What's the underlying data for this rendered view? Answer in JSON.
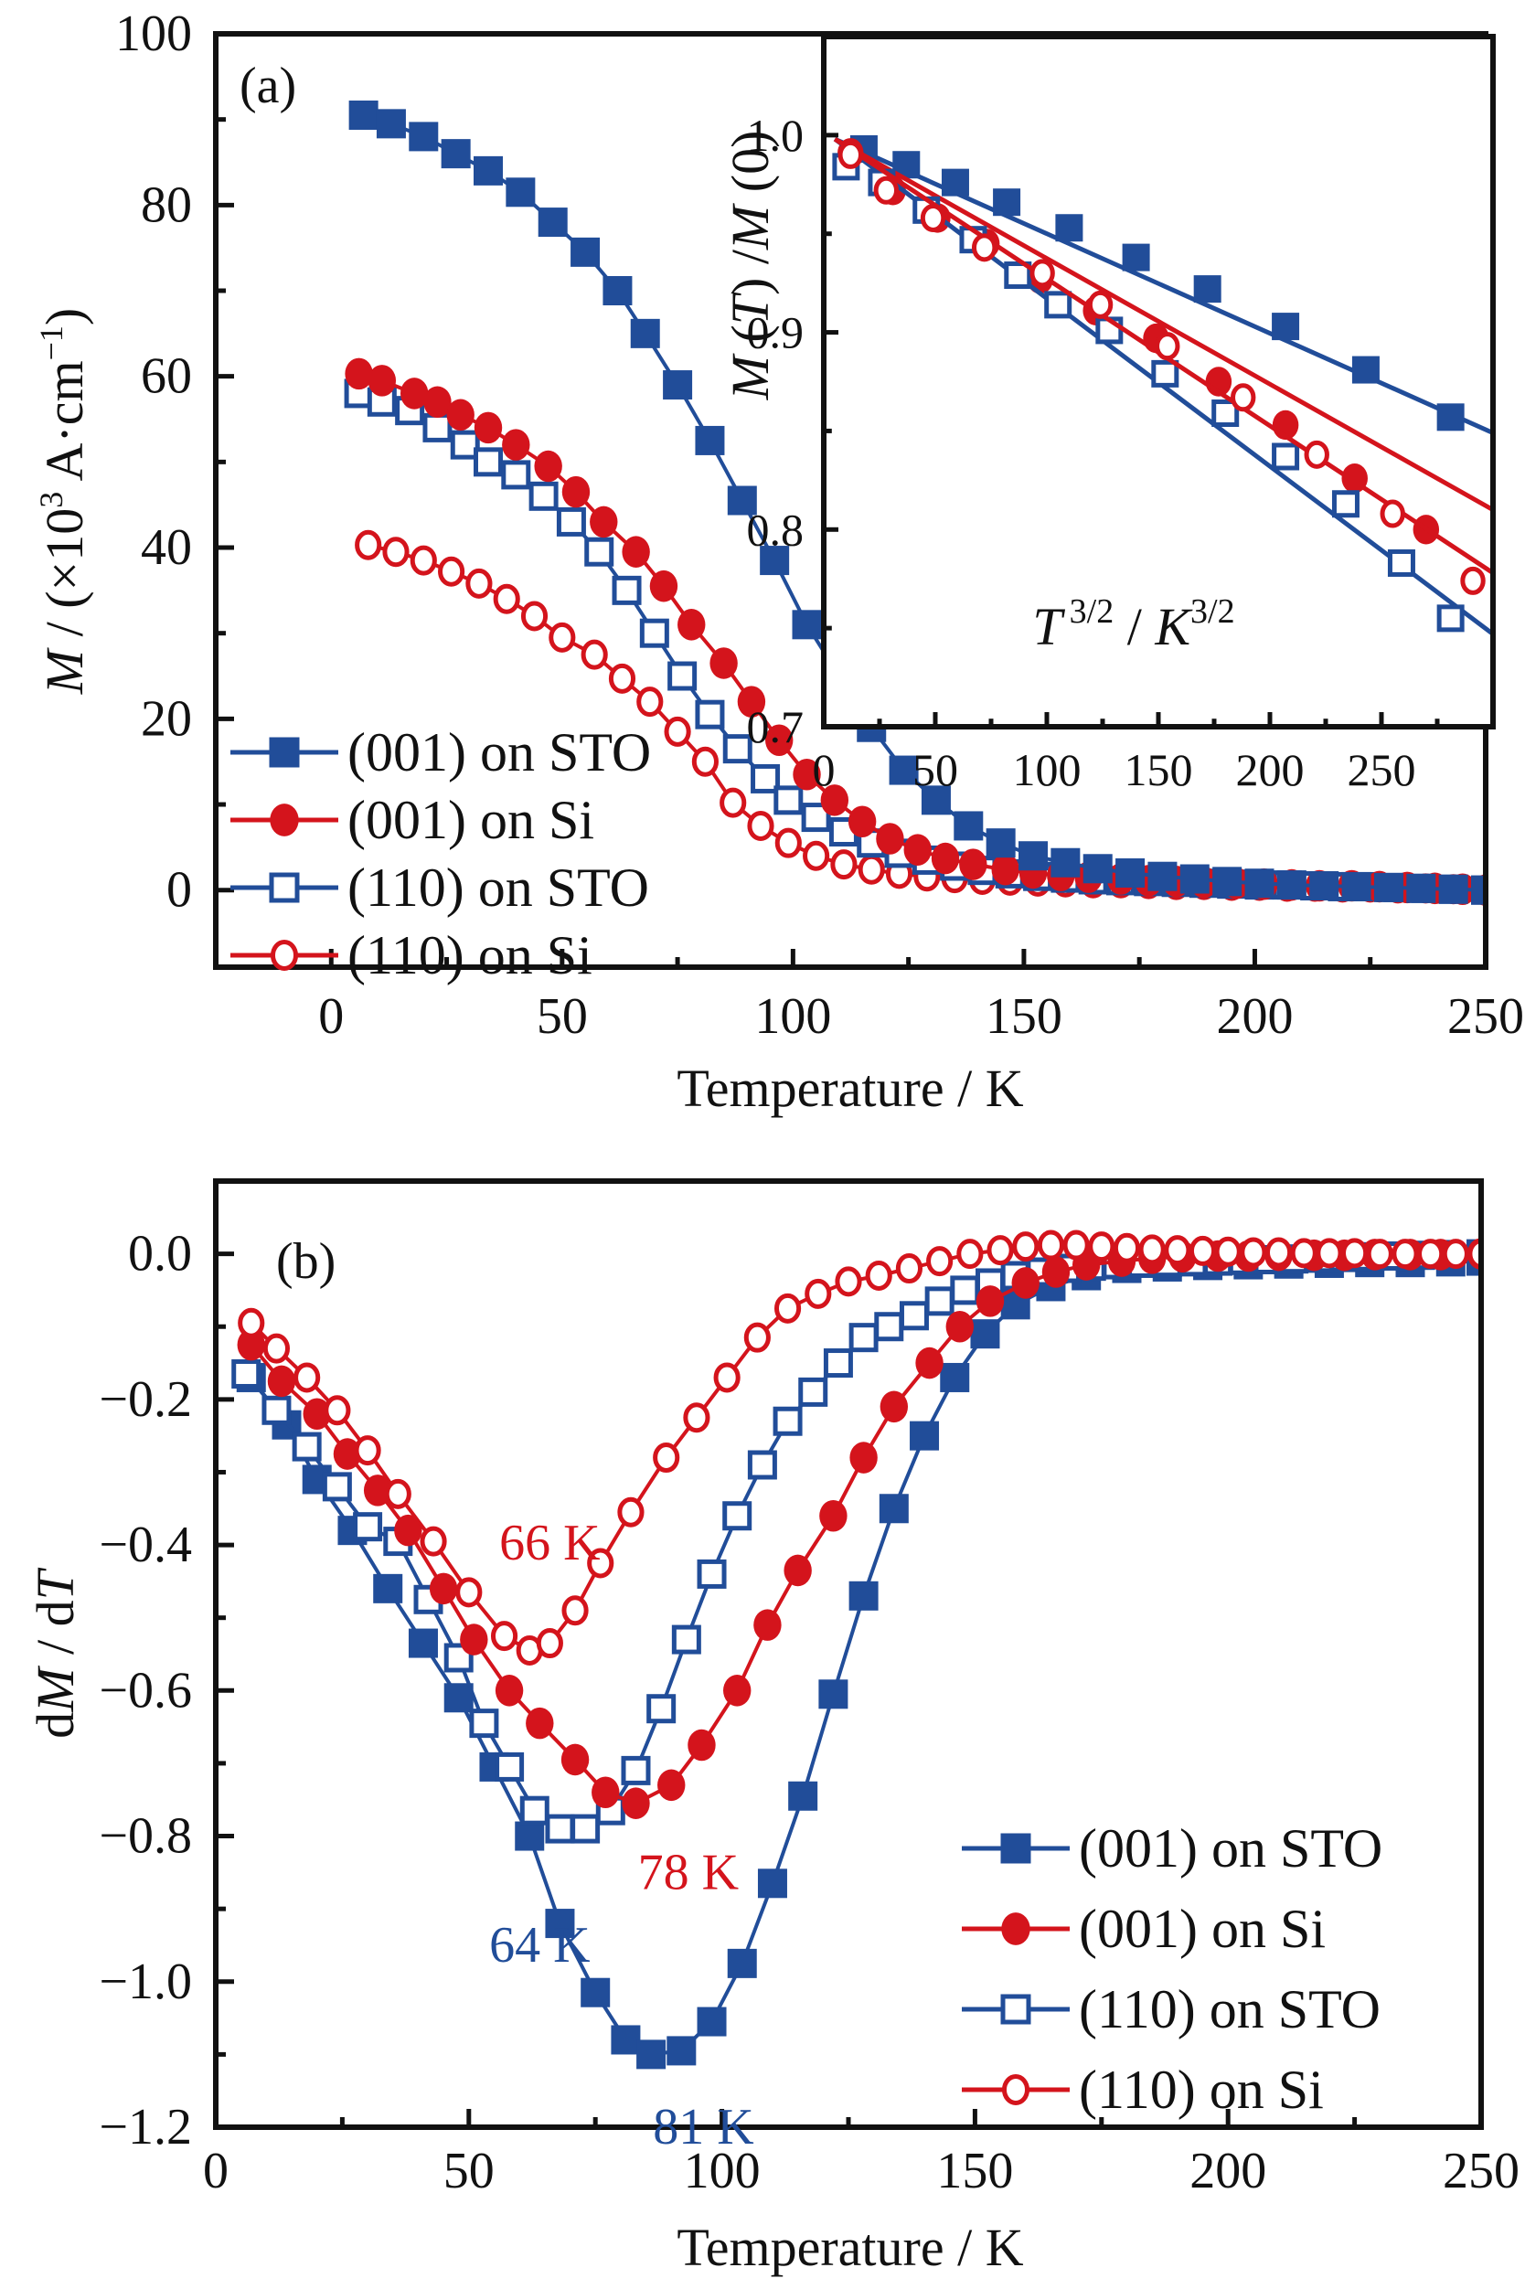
{
  "colors": {
    "blue": "#214d99",
    "red": "#d4141c",
    "axis": "#111111"
  },
  "chart_data": [
    {
      "id": "a",
      "type": "scatter",
      "panel_label": "(a)",
      "title": "",
      "xlabel": "Temperature / K",
      "ylabel": "M / (×10³ A·cm⁻¹)",
      "ylabel_parts": {
        "italic": "M",
        "rest": " / (×10",
        "sup": "3",
        "rest2": " A·cm",
        "sup2": "−1",
        "close": ")"
      },
      "xlim": [
        -25,
        250
      ],
      "ylim": [
        -9,
        100
      ],
      "xticks": [
        0,
        50,
        100,
        150,
        200,
        250
      ],
      "yticks": [
        0,
        20,
        40,
        60,
        80,
        100
      ],
      "legend_position": "bottom-left",
      "series": [
        {
          "name": "(001) on STO",
          "color": "blue",
          "marker": "square-filled",
          "x": [
            7,
            13,
            20,
            27,
            34,
            41,
            48,
            55,
            62,
            68,
            75,
            82,
            89,
            96,
            103,
            110,
            117,
            124,
            131,
            138,
            145,
            152,
            159,
            166,
            173,
            180,
            187,
            194,
            201,
            208,
            215,
            222,
            229,
            236,
            243,
            250
          ],
          "y": [
            90.5,
            89.5,
            88,
            86,
            84,
            81.5,
            78,
            74.5,
            70,
            65,
            59,
            52.5,
            45.5,
            38.5,
            31,
            25,
            19,
            14,
            10.5,
            7.5,
            5.5,
            4,
            3.2,
            2.5,
            2,
            1.6,
            1.3,
            1,
            0.8,
            0.6,
            0.5,
            0.4,
            0.3,
            0.2,
            0.1,
            0
          ]
        },
        {
          "name": "(001) on Si",
          "color": "red",
          "marker": "circle-filled",
          "x": [
            6,
            11,
            18,
            23,
            28,
            34,
            40,
            47,
            53,
            59,
            66,
            72,
            78,
            85,
            91,
            97,
            103,
            109,
            115,
            121,
            127,
            133,
            139,
            146,
            152,
            158,
            164,
            171,
            177,
            183,
            189,
            196,
            202,
            208,
            214,
            221,
            227,
            233,
            239,
            245,
            250
          ],
          "y": [
            60.3,
            59.5,
            58,
            57,
            55.5,
            54,
            52,
            49.5,
            46.5,
            43,
            39.5,
            35.5,
            31,
            26.5,
            22,
            17.5,
            13.5,
            10.5,
            8,
            6,
            4.7,
            3.7,
            3,
            2.4,
            2,
            1.7,
            1.5,
            1.3,
            1.1,
            1,
            0.9,
            0.8,
            0.7,
            0.6,
            0.5,
            0.5,
            0.4,
            0.3,
            0.2,
            0.1,
            0
          ]
        },
        {
          "name": "(110) on STO",
          "color": "blue",
          "marker": "square-open",
          "x": [
            6,
            11,
            17,
            23,
            29,
            34,
            40,
            46,
            52,
            58,
            64,
            70,
            76,
            82,
            88,
            94,
            99,
            105,
            111,
            117,
            123,
            129,
            135,
            141,
            147,
            153,
            159,
            165,
            171,
            177,
            183,
            189,
            195,
            201,
            207,
            213,
            219,
            225,
            231,
            237,
            243,
            250
          ],
          "y": [
            58,
            57,
            56,
            54,
            52,
            50,
            48.5,
            46,
            43,
            39.5,
            35,
            30,
            25,
            20.5,
            16.5,
            13,
            10.5,
            8.5,
            6.8,
            5.5,
            4.3,
            3.5,
            2.8,
            2.3,
            1.9,
            1.6,
            1.4,
            1.2,
            1.1,
            1,
            0.9,
            0.8,
            0.7,
            0.6,
            0.6,
            0.5,
            0.4,
            0.4,
            0.3,
            0.2,
            0.1,
            0
          ]
        },
        {
          "name": "(110) on Si",
          "color": "red",
          "marker": "circle-open",
          "x": [
            8,
            14,
            20,
            26,
            32,
            38,
            44,
            50,
            57,
            63,
            69,
            75,
            81,
            87,
            93,
            99,
            105,
            111,
            117,
            123,
            129,
            135,
            141,
            147,
            153,
            159,
            165,
            171,
            177,
            183,
            189,
            195,
            201,
            207,
            213,
            219,
            225,
            231,
            237,
            243,
            250
          ],
          "y": [
            40.3,
            39.5,
            38.5,
            37.2,
            35.8,
            34,
            32,
            29.5,
            27.5,
            24.7,
            22,
            18.5,
            15,
            10.2,
            7.5,
            5.5,
            4,
            3,
            2.4,
            1.9,
            1.6,
            1.4,
            1.2,
            1.1,
            1,
            0.9,
            0.8,
            0.8,
            0.7,
            0.6,
            0.6,
            0.5,
            0.5,
            0.4,
            0.4,
            0.3,
            0.3,
            0.2,
            0.2,
            0.1,
            0
          ]
        }
      ]
    },
    {
      "id": "a-inset",
      "type": "scatter",
      "xlabel": "T 3/2 / K3/2",
      "xlabel_parts": {
        "t": "T",
        "tsup": "3/2",
        "sep": " / ",
        "k": "K",
        "ksup": "3/2"
      },
      "ylabel": "M (T) /M (0)",
      "ylabel_parts": {
        "m1": "M",
        "t": "T",
        "m2": "M",
        "zero": "0"
      },
      "xlim": [
        0,
        300
      ],
      "ylim": [
        0.7,
        1.05
      ],
      "xticks": [
        0,
        50,
        100,
        150,
        200,
        250
      ],
      "yticks": [
        0.7,
        0.8,
        0.9,
        1.0
      ],
      "ytick_labels": [
        "0.7",
        "0.8",
        "0.9",
        "1.0"
      ],
      "series": [
        {
          "name": "(001) on STO",
          "color": "blue",
          "marker": "square-filled",
          "x": [
            18,
            37,
            59,
            82,
            110,
            140,
            172,
            207,
            243,
            281
          ],
          "y": [
            0.993,
            0.985,
            0.976,
            0.966,
            0.953,
            0.938,
            0.922,
            0.903,
            0.881,
            0.857
          ],
          "fit": {
            "x": [
              5,
              300
            ],
            "y": [
              0.998,
              0.849
            ]
          }
        },
        {
          "name": "(001) on Si",
          "color": "red",
          "marker": "circle-filled",
          "x": [
            12,
            31,
            51,
            73,
            97,
            122,
            149,
            177,
            207,
            238,
            270
          ],
          "y": [
            0.991,
            0.972,
            0.958,
            0.945,
            0.927,
            0.911,
            0.897,
            0.875,
            0.853,
            0.826,
            0.8
          ],
          "fit": {
            "x": [
              5,
              300
            ],
            "y": [
              0.998,
              0.81
            ]
          }
        },
        {
          "name": "(110) on STO",
          "color": "blue",
          "marker": "square-open",
          "x": [
            10,
            26,
            46,
            67,
            87,
            105,
            128,
            153,
            180,
            207,
            234,
            259,
            281
          ],
          "y": [
            0.984,
            0.976,
            0.962,
            0.947,
            0.929,
            0.914,
            0.901,
            0.879,
            0.859,
            0.837,
            0.813,
            0.783,
            0.755
          ],
          "fit": {
            "x": [
              5,
              300
            ],
            "y": [
              0.998,
              0.747
            ]
          }
        },
        {
          "name": "(110) on Si",
          "color": "red",
          "marker": "circle-open",
          "x": [
            12,
            28,
            49,
            72,
            98,
            124,
            154,
            188,
            221,
            255,
            291
          ],
          "y": [
            0.99,
            0.972,
            0.958,
            0.943,
            0.93,
            0.914,
            0.893,
            0.867,
            0.838,
            0.808,
            0.774
          ],
          "fit": {
            "x": [
              5,
              300
            ],
            "y": [
              0.998,
              0.778
            ]
          }
        }
      ]
    },
    {
      "id": "b",
      "type": "scatter",
      "panel_label": "(b)",
      "xlabel": "Temperature / K",
      "ylabel": "dM / dT",
      "ylabel_parts": {
        "d1": "d",
        "m": "M",
        "sep": " / d",
        "t": "T"
      },
      "xlim": [
        0,
        250
      ],
      "ylim": [
        -1.2,
        0.1
      ],
      "xticks": [
        0,
        50,
        100,
        150,
        200,
        250
      ],
      "yticks": [
        -1.2,
        -1.0,
        -0.8,
        -0.6,
        -0.4,
        -0.2,
        0.0
      ],
      "ytick_labels": [
        "−1.2",
        "−1.0",
        "−0.8",
        "−0.6",
        "−0.4",
        "−0.2",
        "0.0"
      ],
      "legend_position": "bottom-right",
      "annotations": [
        {
          "text": "66 K",
          "x": 66,
          "y": -0.43,
          "color": "red"
        },
        {
          "text": "78 K",
          "x": 78,
          "y": -0.86,
          "color": "red"
        },
        {
          "text": "64 K",
          "x": 64,
          "y": -0.93,
          "color": "blue"
        },
        {
          "text": "81 K",
          "x": 81,
          "y": -1.16,
          "color": "blue"
        }
      ],
      "series": [
        {
          "name": "(001) on STO",
          "color": "blue",
          "marker": "square-filled",
          "x": [
            7,
            14,
            20,
            27,
            34,
            41,
            48,
            55,
            62,
            68,
            75,
            81,
            86,
            92,
            98,
            104,
            110,
            116,
            122,
            128,
            134,
            140,
            146,
            152,
            158,
            165,
            172,
            180,
            188,
            196,
            204,
            212,
            220,
            228,
            236,
            244,
            250
          ],
          "y": [
            -0.17,
            -0.235,
            -0.31,
            -0.38,
            -0.46,
            -0.535,
            -0.61,
            -0.705,
            -0.8,
            -0.92,
            -1.015,
            -1.08,
            -1.1,
            -1.095,
            -1.055,
            -0.975,
            -0.865,
            -0.745,
            -0.605,
            -0.47,
            -0.35,
            -0.25,
            -0.17,
            -0.11,
            -0.07,
            -0.045,
            -0.03,
            -0.02,
            -0.018,
            -0.016,
            -0.015,
            -0.014,
            -0.013,
            -0.012,
            -0.012,
            -0.011,
            -0.01
          ]
        },
        {
          "name": "(001) on Si",
          "color": "red",
          "marker": "circle-filled",
          "x": [
            7,
            13,
            20,
            26,
            32,
            38,
            45,
            51,
            58,
            64,
            71,
            77,
            83,
            90,
            96,
            103,
            109,
            115,
            122,
            128,
            134,
            141,
            147,
            153,
            160,
            166,
            172,
            179,
            185,
            191,
            198,
            204,
            210,
            217,
            223,
            229,
            236,
            242,
            250
          ],
          "y": [
            -0.125,
            -0.175,
            -0.22,
            -0.275,
            -0.325,
            -0.38,
            -0.46,
            -0.53,
            -0.6,
            -0.645,
            -0.695,
            -0.74,
            -0.755,
            -0.73,
            -0.675,
            -0.6,
            -0.51,
            -0.435,
            -0.36,
            -0.28,
            -0.21,
            -0.15,
            -0.1,
            -0.065,
            -0.04,
            -0.025,
            -0.015,
            -0.01,
            -0.006,
            -0.004,
            -0.003,
            -0.003,
            -0.002,
            -0.002,
            -0.002,
            -0.001,
            -0.001,
            -0.001,
            0
          ]
        },
        {
          "name": "(110) on STO",
          "color": "blue",
          "marker": "square-open",
          "x": [
            6,
            12,
            18,
            24,
            30,
            36,
            42,
            48,
            53,
            58,
            63,
            68,
            73,
            78,
            83,
            88,
            93,
            98,
            103,
            108,
            113,
            118,
            123,
            128,
            133,
            138,
            143,
            148,
            153,
            158,
            163,
            168,
            173,
            178,
            183,
            188,
            193,
            198,
            203,
            208,
            213,
            218,
            223,
            228,
            233,
            238,
            243,
            250
          ],
          "y": [
            -0.165,
            -0.215,
            -0.265,
            -0.32,
            -0.375,
            -0.395,
            -0.475,
            -0.555,
            -0.645,
            -0.705,
            -0.765,
            -0.79,
            -0.79,
            -0.765,
            -0.71,
            -0.625,
            -0.53,
            -0.44,
            -0.36,
            -0.29,
            -0.23,
            -0.19,
            -0.15,
            -0.115,
            -0.1,
            -0.085,
            -0.065,
            -0.05,
            -0.04,
            -0.03,
            -0.025,
            -0.02,
            -0.017,
            -0.015,
            -0.013,
            -0.012,
            -0.011,
            -0.01,
            -0.009,
            -0.008,
            -0.007,
            -0.006,
            -0.005,
            -0.004,
            -0.003,
            -0.002,
            -0.001,
            0
          ]
        },
        {
          "name": "(110) on Si",
          "color": "red",
          "marker": "circle-open",
          "x": [
            7,
            12,
            18,
            24,
            30,
            36,
            43,
            50,
            57,
            62,
            66,
            71,
            76,
            82,
            89,
            95,
            101,
            107,
            113,
            119,
            125,
            131,
            137,
            143,
            149,
            155,
            160,
            165,
            170,
            175,
            180,
            185,
            190,
            195,
            200,
            205,
            210,
            215,
            220,
            225,
            230,
            235,
            240,
            245,
            250
          ],
          "y": [
            -0.095,
            -0.13,
            -0.17,
            -0.215,
            -0.27,
            -0.33,
            -0.395,
            -0.465,
            -0.525,
            -0.545,
            -0.535,
            -0.49,
            -0.425,
            -0.355,
            -0.28,
            -0.225,
            -0.17,
            -0.115,
            -0.075,
            -0.055,
            -0.038,
            -0.03,
            -0.02,
            -0.01,
            0,
            0.005,
            0.01,
            0.012,
            0.012,
            0.01,
            0.008,
            0.006,
            0.005,
            0.004,
            0.003,
            0.002,
            0.002,
            0.001,
            0.001,
            0.001,
            0,
            0,
            0,
            0,
            0
          ]
        }
      ]
    }
  ]
}
